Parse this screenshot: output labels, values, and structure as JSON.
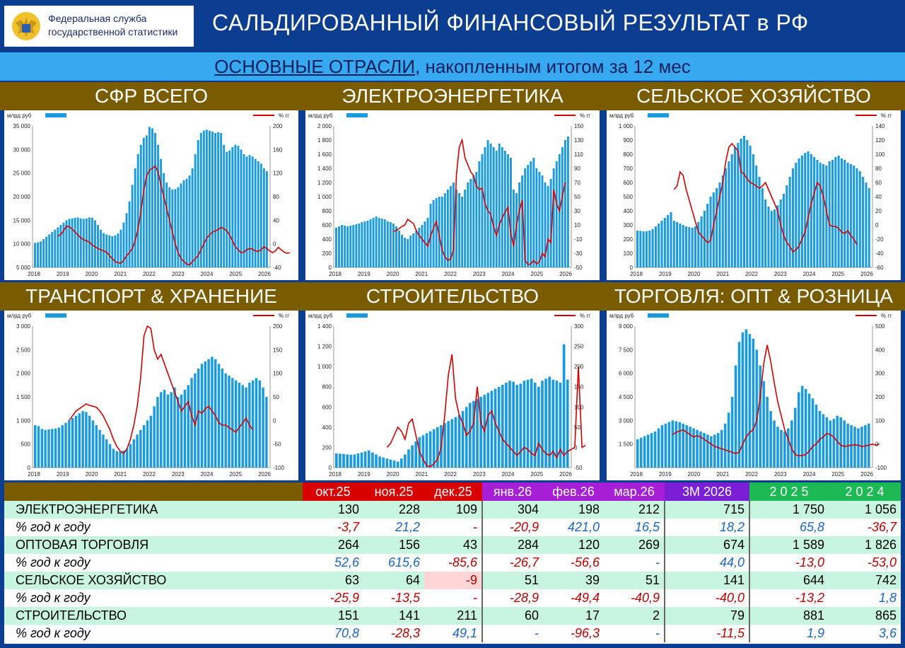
{
  "header": {
    "org_line1": "Федеральная служба",
    "org_line2": "государственной статистики",
    "title": "САЛЬДИРОВАННЫЙ ФИНАНСОВЫЙ РЕЗУЛЬТАТ в РФ",
    "subtitle_underlined": "ОСНОВНЫЕ ОТРАСЛИ",
    "subtitle_rest": ", накопленным итогом за 12 мес"
  },
  "colors": {
    "bar": "#1a9be0",
    "line": "#d40000",
    "title_bg": "#7a5c00"
  },
  "chart_data": [
    {
      "type": "bar+line",
      "title": "СФР ВСЕГО",
      "legend_left": "млрд руб",
      "legend_right": "% гг",
      "x_ticks": [
        "2018",
        "2019",
        "2020",
        "2021",
        "2022",
        "2023",
        "2024",
        "2025",
        "2026"
      ],
      "ylim_left": [
        5000,
        35000
      ],
      "ticks_left": [
        "5 000",
        "10 000",
        "15 000",
        "20 000",
        "25 000",
        "30 000",
        "35 000"
      ],
      "ylim_right": [
        -40,
        200
      ],
      "ticks_right": [
        "-40",
        "0",
        "40",
        "80",
        "120",
        "160",
        "200"
      ],
      "bars": [
        10200,
        10300,
        10500,
        11000,
        11500,
        12000,
        12500,
        13000,
        13500,
        14000,
        14500,
        15000,
        15300,
        15400,
        15500,
        15600,
        15400,
        15300,
        15400,
        15600,
        15500,
        15000,
        14000,
        13000,
        12300,
        12000,
        11800,
        11600,
        11800,
        12200,
        13000,
        14500,
        16500,
        19000,
        22500,
        26000,
        29000,
        31000,
        32500,
        33000,
        34800,
        34500,
        33500,
        31000,
        28000,
        25000,
        23000,
        22000,
        21500,
        21600,
        22000,
        22800,
        23500,
        23800,
        24500,
        26000,
        29000,
        32000,
        33500,
        34000,
        34200,
        34000,
        33800,
        33500,
        33700,
        33500,
        31000,
        29500,
        29800,
        30500,
        31000,
        30800,
        30000,
        29000,
        28500,
        28800,
        28500,
        28000,
        27500,
        27000,
        26000,
        25400
      ],
      "line": [
        13,
        16,
        22,
        30,
        29,
        25,
        20,
        15,
        10,
        7,
        5,
        3,
        -2,
        -5,
        -8,
        -10,
        -12,
        -14,
        -20,
        -25,
        -30,
        -32,
        -33,
        -28,
        -20,
        -15,
        -8,
        5,
        25,
        55,
        90,
        115,
        125,
        128,
        132,
        122,
        100,
        80,
        60,
        40,
        20,
        0,
        -15,
        -25,
        -30,
        -34,
        -36,
        -30,
        -25,
        -20,
        -10,
        0,
        10,
        15,
        20,
        22,
        24,
        28,
        26,
        22,
        15,
        5,
        -5,
        -10,
        -15,
        -14,
        -10,
        -8,
        -9,
        -12,
        -13,
        -10,
        -5,
        -8,
        -12,
        -15,
        -12,
        -6,
        -10,
        -14,
        -16,
        -15
      ],
      "line_start": 8
    },
    {
      "type": "bar+line",
      "title": "ЭЛЕКТРОЭНЕРГЕТИКА",
      "legend_left": "млрд руб",
      "legend_right": "% гг",
      "x_ticks": [
        "2018",
        "2019",
        "2020",
        "2021",
        "2022",
        "2023",
        "2024",
        "2025",
        "2026"
      ],
      "ylim_left": [
        0,
        2000
      ],
      "ticks_left": [
        "0",
        "200",
        "400",
        "600",
        "800",
        "1 000",
        "1 200",
        "1 400",
        "1 600",
        "1 800",
        "2 000"
      ],
      "ylim_right": [
        -50,
        150
      ],
      "ticks_right": [
        "-50",
        "-30",
        "-10",
        "10",
        "30",
        "50",
        "70",
        "90",
        "110",
        "130",
        "150"
      ],
      "bars": [
        560,
        580,
        600,
        590,
        580,
        590,
        600,
        610,
        620,
        640,
        650,
        660,
        680,
        700,
        720,
        700,
        690,
        680,
        650,
        640,
        620,
        580,
        520,
        460,
        420,
        400,
        450,
        480,
        520,
        560,
        600,
        650,
        700,
        900,
        950,
        980,
        1000,
        1000,
        1050,
        1100,
        1150,
        1200,
        1100,
        1050,
        1000,
        1100,
        1200,
        1250,
        1300,
        1350,
        1500,
        1600,
        1700,
        1800,
        1750,
        1700,
        1650,
        1750,
        1700,
        1650,
        1600,
        1550,
        1100,
        1050,
        1200,
        1300,
        1400,
        1450,
        1500,
        1550,
        1400,
        1350,
        1300,
        1200,
        1150,
        1250,
        1400,
        1500,
        1600,
        1700,
        1800,
        1850
      ],
      "line": [
        1,
        2,
        5,
        8,
        10,
        18,
        15,
        12,
        2,
        -5,
        -10,
        -15,
        -20,
        -5,
        5,
        15,
        -5,
        -25,
        -35,
        -40,
        -38,
        -25,
        80,
        120,
        130,
        105,
        95,
        85,
        80,
        65,
        60,
        62,
        40,
        30,
        25,
        8,
        -5,
        10,
        20,
        28,
        35,
        -2,
        -20,
        10,
        30,
        45,
        -40,
        -46,
        -45,
        -40,
        -45,
        -42,
        -30,
        -35,
        -10,
        -15,
        60,
        40,
        30,
        50,
        70
      ],
      "line_start": 20
    },
    {
      "type": "bar+line",
      "title": "СЕЛЬСКОЕ ХОЗЯЙСТВО",
      "legend_left": "млрд руб",
      "legend_right": "% гг",
      "x_ticks": [
        "2018",
        "2019",
        "2020",
        "2021",
        "2022",
        "2023",
        "2024",
        "2025",
        "2026"
      ],
      "ylim_left": [
        0,
        1000
      ],
      "ticks_left": [
        "0",
        "100",
        "200",
        "300",
        "400",
        "500",
        "600",
        "700",
        "800",
        "900",
        "1 000"
      ],
      "ylim_right": [
        -60,
        140
      ],
      "ticks_right": [
        "-60",
        "-40",
        "-20",
        "0",
        "20",
        "40",
        "60",
        "80",
        "100",
        "120",
        "140"
      ],
      "bars": [
        260,
        258,
        255,
        256,
        260,
        270,
        290,
        310,
        330,
        350,
        370,
        390,
        330,
        320,
        310,
        300,
        290,
        285,
        280,
        290,
        320,
        360,
        400,
        450,
        500,
        530,
        560,
        600,
        650,
        700,
        750,
        800,
        850,
        880,
        910,
        930,
        900,
        860,
        800,
        720,
        640,
        560,
        480,
        430,
        400,
        410,
        440,
        480,
        520,
        580,
        640,
        700,
        740,
        770,
        790,
        810,
        820,
        800,
        780,
        760,
        740,
        730,
        720,
        750,
        760,
        780,
        790,
        770,
        760,
        740,
        730,
        720,
        700,
        680,
        640,
        600,
        560
      ],
      "line": [
        50,
        55,
        75,
        70,
        50,
        35,
        20,
        5,
        -10,
        -15,
        -20,
        -25,
        -22,
        0,
        20,
        40,
        60,
        90,
        110,
        115,
        110,
        105,
        75,
        72,
        65,
        60,
        58,
        55,
        52,
        55,
        60,
        50,
        40,
        30,
        20,
        0,
        -15,
        -25,
        -30,
        -38,
        -35,
        -30,
        -20,
        -10,
        10,
        30,
        45,
        60,
        55,
        40,
        20,
        0,
        -2,
        -2,
        -5,
        -10,
        -12,
        -8,
        -15,
        -20,
        -28
      ],
      "line_start": 12
    },
    {
      "type": "bar+line",
      "title": "ТРАНСПОРТ & ХРАНЕНИЕ",
      "legend_left": "млрд руб",
      "legend_right": "% гг",
      "x_ticks": [
        "2018",
        "2019",
        "2020",
        "2021",
        "2022",
        "2023",
        "2024",
        "2025",
        "2026"
      ],
      "ylim_left": [
        0,
        3000
      ],
      "ticks_left": [
        "0",
        "500",
        "1 000",
        "1 500",
        "2 000",
        "2 500",
        "3 000"
      ],
      "ylim_right": [
        -100,
        200
      ],
      "ticks_right": [
        "-100",
        "-50",
        "0",
        "50",
        "100",
        "150",
        "200"
      ],
      "bars": [
        900,
        880,
        820,
        800,
        810,
        820,
        830,
        850,
        900,
        950,
        1000,
        1050,
        1100,
        1150,
        1200,
        1180,
        1100,
        1000,
        900,
        800,
        700,
        600,
        500,
        400,
        350,
        340,
        360,
        400,
        500,
        600,
        700,
        800,
        900,
        1000,
        1100,
        1300,
        1500,
        1600,
        1650,
        1550,
        1600,
        1700,
        1500,
        1550,
        1650,
        1750,
        1900,
        2000,
        2100,
        2200,
        2250,
        2300,
        2350,
        2300,
        2200,
        2100,
        2000,
        1950,
        1900,
        1850,
        1800,
        1750,
        1700,
        1800,
        1850,
        1900,
        1850,
        1700,
        1500
      ],
      "line": [
        0,
        10,
        20,
        25,
        30,
        35,
        32,
        30,
        28,
        20,
        10,
        -5,
        -20,
        -40,
        -55,
        -65,
        -70,
        -60,
        -40,
        -10,
        30,
        90,
        180,
        200,
        195,
        150,
        130,
        140,
        120,
        100,
        80,
        60,
        40,
        20,
        30,
        40,
        10,
        -10,
        20,
        15,
        25,
        30,
        20,
        10,
        -5,
        -10,
        -10,
        -15,
        -20,
        -25,
        -15,
        -5,
        5,
        -10,
        -20
      ],
      "line_start": 10
    },
    {
      "type": "bar+line",
      "title": "СТРОИТЕЛЬСТВО",
      "legend_left": "млрд руб",
      "legend_right": "% гг",
      "x_ticks": [
        "2018",
        "2019",
        "2020",
        "2021",
        "2022",
        "2023",
        "2024",
        "2025",
        "2026"
      ],
      "ylim_left": [
        0,
        1400
      ],
      "ticks_left": [
        "0",
        "200",
        "400",
        "600",
        "800",
        "1 000",
        "1 200",
        "1 400"
      ],
      "ylim_right": [
        -50,
        300
      ],
      "ticks_right": [
        "-50",
        "0",
        "50",
        "100",
        "150",
        "200",
        "250",
        "300"
      ],
      "bars": [
        140,
        138,
        135,
        130,
        128,
        130,
        140,
        150,
        160,
        170,
        150,
        130,
        110,
        100,
        90,
        80,
        70,
        60,
        90,
        130,
        180,
        220,
        260,
        300,
        320,
        340,
        360,
        380,
        400,
        420,
        440,
        460,
        480,
        500,
        520,
        560,
        600,
        640,
        660,
        680,
        700,
        720,
        740,
        760,
        780,
        800,
        820,
        840,
        860,
        850,
        820,
        830,
        860,
        870,
        880,
        840,
        800,
        860,
        880,
        900,
        870,
        860,
        840,
        1220,
        870
      ],
      "line": [
        0,
        10,
        30,
        50,
        40,
        20,
        60,
        70,
        30,
        -10,
        -30,
        -45,
        -48,
        -40,
        -30,
        0,
        80,
        180,
        230,
        120,
        80,
        60,
        30,
        40,
        60,
        150,
        60,
        40,
        80,
        90,
        60,
        40,
        20,
        10,
        0,
        -10,
        -20,
        -10,
        0,
        -5,
        -15,
        -20,
        10,
        -5,
        -15,
        -20,
        -10,
        -25,
        -5,
        -20,
        -10,
        -5,
        0,
        200,
        0,
        5
      ],
      "line_start": 14
    },
    {
      "type": "bar+line",
      "title": "ТОРГОВЛЯ: ОПТ & РОЗНИЦА",
      "legend_left": "млрд руб",
      "legend_right": "% гг",
      "x_ticks": [
        "2018",
        "2019",
        "2020",
        "2021",
        "2022",
        "2023",
        "2024",
        "2025",
        "2026"
      ],
      "ylim_left": [
        0,
        9000
      ],
      "ticks_left": [
        "1 500",
        "3 000",
        "4 500",
        "6 000",
        "7 500",
        "9 000"
      ],
      "ylim_right": [
        -100,
        500
      ],
      "ticks_right": [
        "-100",
        "0",
        "100",
        "200",
        "300",
        "400",
        "500"
      ],
      "bars": [
        1800,
        1900,
        2000,
        2100,
        2200,
        2300,
        2500,
        2700,
        2800,
        2900,
        3000,
        2950,
        2900,
        2800,
        2700,
        2600,
        2500,
        2400,
        2300,
        2200,
        2100,
        2000,
        2100,
        2200,
        2400,
        2800,
        3500,
        4500,
        6500,
        8000,
        8600,
        8800,
        8500,
        8200,
        7500,
        6500,
        5500,
        4500,
        3600,
        3000,
        2600,
        2400,
        2300,
        2500,
        3000,
        3800,
        4800,
        5200,
        5000,
        4700,
        4400,
        4000,
        3600,
        3400,
        3200,
        3000,
        3100,
        3300,
        3200,
        3000,
        2800,
        2700,
        2600,
        2500,
        2600,
        2700,
        2800
      ],
      "line": [
        40,
        50,
        55,
        60,
        50,
        40,
        30,
        35,
        30,
        20,
        10,
        0,
        -10,
        -15,
        -20,
        -25,
        -30,
        -35,
        -40,
        -35,
        0,
        30,
        50,
        60,
        100,
        200,
        340,
        420,
        350,
        260,
        180,
        120,
        60,
        20,
        -20,
        -45,
        -50,
        -48,
        -45,
        -30,
        -10,
        0,
        20,
        30,
        45,
        40,
        30,
        10,
        -5,
        -10,
        -8,
        -5,
        -3,
        -5,
        -10,
        -8,
        -5,
        0,
        -5,
        0
      ],
      "line_start": 10
    }
  ],
  "table": {
    "headers": [
      "окт.25",
      "ноя.25",
      "дек.25",
      "янв.26",
      "фев.26",
      "мар.26",
      "3М 2026",
      "2 0 2 5",
      "2 0 2 4"
    ],
    "rows": [
      {
        "label": "ЭЛЕКТРОЭНЕРГЕТИКА",
        "values": [
          "130",
          "228",
          "109",
          "304",
          "198",
          "212",
          "715",
          "1 750",
          "1 056"
        ],
        "kind": "a"
      },
      {
        "label": "% год к году",
        "values": [
          "-3,7",
          "21,2",
          "-",
          "-20,9",
          "421,0",
          "16,5",
          "18,2",
          "65,8",
          "-36,7"
        ],
        "kind": "b"
      },
      {
        "label": "ОПТОВАЯ ТОРГОВЛЯ",
        "values": [
          "264",
          "156",
          "43",
          "284",
          "120",
          "269",
          "674",
          "1 589",
          "1 826"
        ],
        "kind": "a"
      },
      {
        "label": "% год к году",
        "values": [
          "52,6",
          "615,6",
          "-85,6",
          "-26,7",
          "-56,6",
          "-",
          "44,0",
          "-13,0",
          "-53,0"
        ],
        "kind": "b"
      },
      {
        "label": "СЕЛЬСКОЕ ХОЗЯЙСТВО",
        "values": [
          "63",
          "64",
          "-9",
          "51",
          "39",
          "51",
          "141",
          "644",
          "742"
        ],
        "kind": "a"
      },
      {
        "label": "% год к году",
        "values": [
          "-25,9",
          "-13,5",
          "-",
          "-28,9",
          "-49,4",
          "-40,9",
          "-40,0",
          "-13,2",
          "1,8"
        ],
        "kind": "b"
      },
      {
        "label": "СТРОИТЕЛЬСТВО",
        "values": [
          "151",
          "141",
          "211",
          "60",
          "17",
          "2",
          "79",
          "881",
          "865"
        ],
        "kind": "a"
      },
      {
        "label": "% год к году",
        "values": [
          "70,8",
          "-28,3",
          "49,1",
          "-",
          "-96,3",
          "-",
          "-11,5",
          "1,9",
          "3,6"
        ],
        "kind": "b"
      }
    ]
  }
}
